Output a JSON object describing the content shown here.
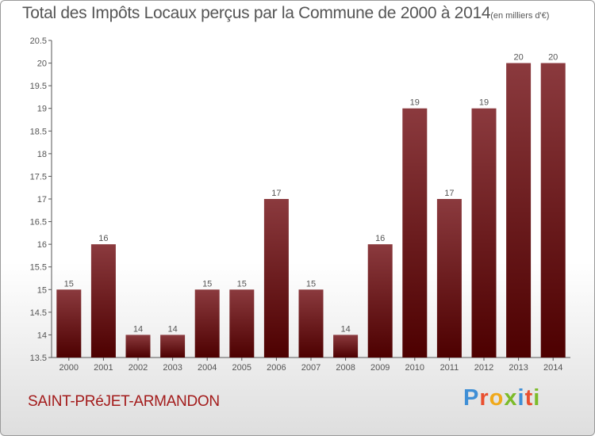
{
  "header": {
    "title": "Total des Impôts Locaux perçus par la Commune de 2000 à 2014",
    "unit": "(en milliers d'€)"
  },
  "footer": {
    "commune": "SAINT-PRéJET-ARMANDON",
    "brand": "Proxiti",
    "brand_colors": [
      "#3f8fd6",
      "#e94f2f",
      "#f0a91b",
      "#7cbb2a",
      "#3f8fd6",
      "#e94f2f",
      "#7cbb2a"
    ]
  },
  "colors": {
    "bar_light": "#8b3a3e",
    "bar_dark": "#4d0000",
    "axis": "#555555",
    "text": "#555555"
  },
  "chart_data": {
    "type": "bar",
    "title": "Total des Impôts Locaux perçus par la Commune de 2000 à 2014",
    "subtitle": "(en milliers d'€)",
    "categories": [
      "2000",
      "2001",
      "2002",
      "2003",
      "2004",
      "2005",
      "2006",
      "2007",
      "2008",
      "2009",
      "2010",
      "2011",
      "2012",
      "2013",
      "2014"
    ],
    "values": [
      15,
      16,
      14,
      14,
      15,
      15,
      17,
      15,
      14,
      16,
      19,
      17,
      19,
      20,
      20
    ],
    "data_labels": [
      "15",
      "16",
      "14",
      "14",
      "15",
      "15",
      "17",
      "15",
      "14",
      "16",
      "19",
      "17",
      "19",
      "20",
      "20"
    ],
    "yticks": [
      13.5,
      14,
      14.5,
      15,
      15.5,
      16,
      16.5,
      17,
      17.5,
      18,
      18.5,
      19,
      19.5,
      20,
      20.5
    ],
    "ytick_labels": [
      "13.5",
      "14",
      "14.5",
      "15",
      "15.5",
      "16",
      "16.5",
      "17",
      "17.5",
      "18",
      "18.5",
      "19",
      "19.5",
      "20",
      "20.5"
    ],
    "ylim": [
      13.5,
      20.5
    ],
    "xlabel": "",
    "ylabel": "",
    "grid": false,
    "legend": "none"
  }
}
